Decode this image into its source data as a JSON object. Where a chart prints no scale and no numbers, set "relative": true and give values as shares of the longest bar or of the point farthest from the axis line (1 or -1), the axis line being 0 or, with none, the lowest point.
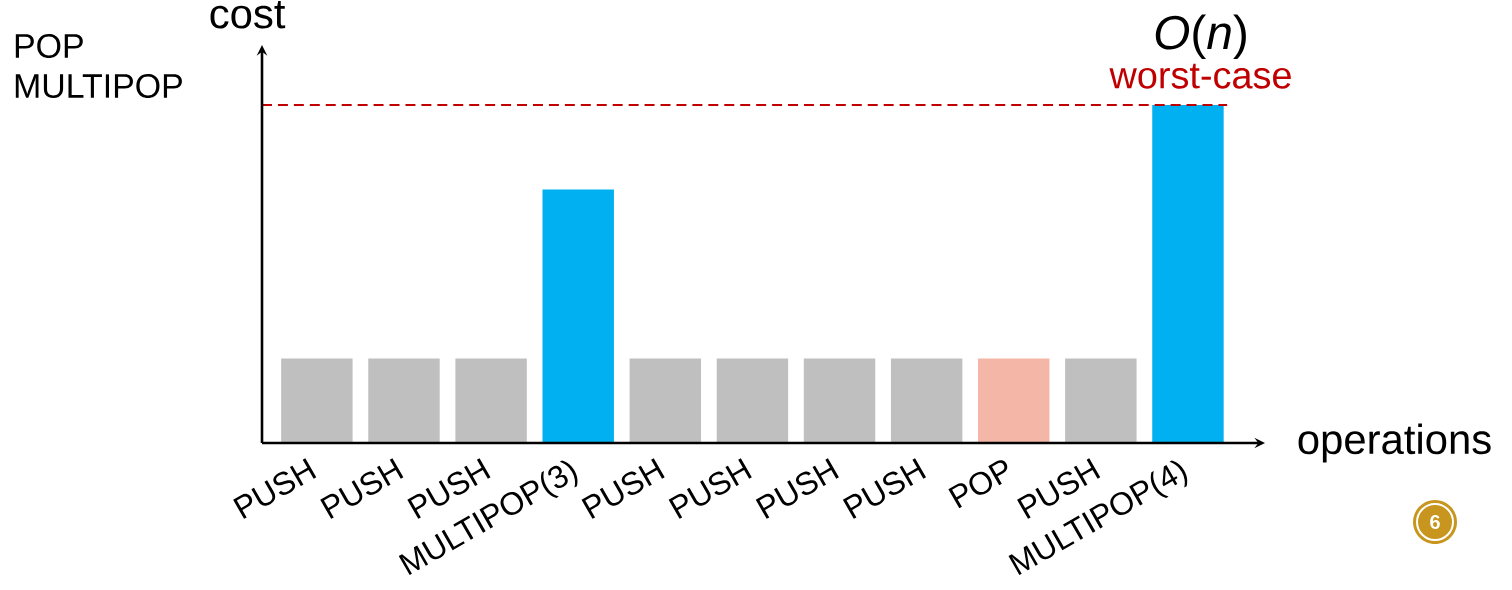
{
  "chart_data": {
    "type": "bar",
    "relative": true,
    "xlabel": "operations",
    "ylabel": "cost",
    "categories": [
      "PUSH",
      "PUSH",
      "PUSH",
      "MULTIPOP(3)",
      "PUSH",
      "PUSH",
      "PUSH",
      "PUSH",
      "POP",
      "PUSH",
      "MULTIPOP(4)"
    ],
    "values": [
      0.25,
      0.25,
      0.25,
      0.75,
      0.25,
      0.25,
      0.25,
      0.25,
      0.25,
      0.25,
      1
    ],
    "colors": [
      "#bfbfbf",
      "#bfbfbf",
      "#bfbfbf",
      "#00b0f0",
      "#bfbfbf",
      "#bfbfbf",
      "#bfbfbf",
      "#bfbfbf",
      "#f4b6a6",
      "#bfbfbf",
      "#00b0f0"
    ],
    "ref_lines": [
      {
        "axis": "y",
        "value": 1,
        "label": "worst-case",
        "color": "#c00000",
        "line_style": "dashed"
      }
    ],
    "annotations": [
      "*O*(*n*)",
      "POP",
      "MULTIPOP",
      "6"
    ]
  }
}
